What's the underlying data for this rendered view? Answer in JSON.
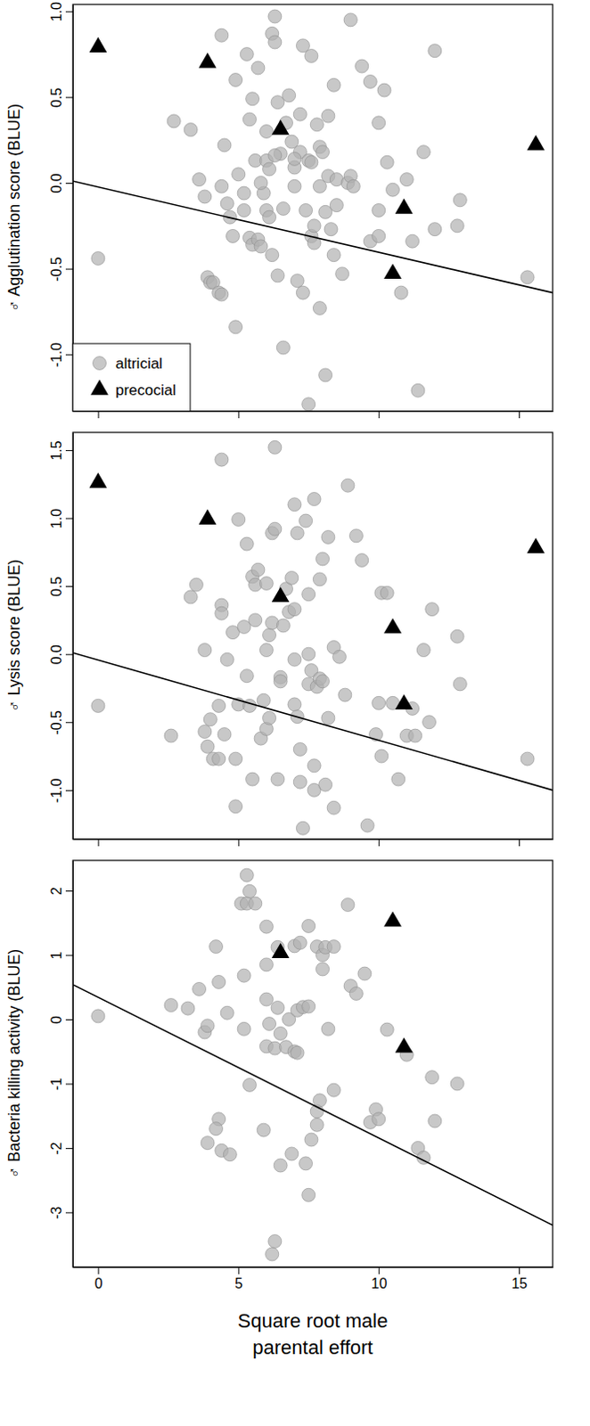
{
  "chart_data": [
    {
      "type": "scatter",
      "y_label": "♂ Agglutination score (BLUE)",
      "xlim": [
        -0.9,
        16.2
      ],
      "xticks": [
        0,
        5,
        10,
        15
      ],
      "ylim": [
        -1.33,
        1.04
      ],
      "yticks": [
        {
          "value": 1,
          "label": "1.0"
        },
        0.5,
        {
          "value": 0,
          "label": "0.0"
        },
        -0.5,
        {
          "value": -1,
          "label": "-1.0"
        }
      ],
      "tick_labels": "y",
      "legend": "bottom left",
      "series": [
        {
          "name": "altricial",
          "color": "#b0b0b0",
          "marker": "circle",
          "x": [
            0,
            2.7,
            3.3,
            3.6,
            3.8,
            3.9,
            4.0,
            4.1,
            4.3,
            4.4,
            4.4,
            4.5,
            4.4,
            4.6,
            4.7,
            4.8,
            4.9,
            4.9,
            5.0,
            5.2,
            5.2,
            5.3,
            5.4,
            5.4,
            5.5,
            5.5,
            5.6,
            5.7,
            5.7,
            5.8,
            5.9,
            6.0,
            6.0,
            6.0,
            6.1,
            6.1,
            6.2,
            6.2,
            6.3,
            6.3,
            6.4,
            6.4,
            6.5,
            6.6,
            6.6,
            6.7,
            6.8,
            6.9,
            7.0,
            7.0,
            7.1,
            7.2,
            7.2,
            7.3,
            7.3,
            7.4,
            7.5,
            7.5,
            7.6,
            7.6,
            7.7,
            7.7,
            7.8,
            7.9,
            7.9,
            7.9,
            8.0,
            8.1,
            8.1,
            8.2,
            8.2,
            8.3,
            8.4,
            8.4,
            8.5,
            8.5,
            8.7,
            8.9,
            9.0,
            9.0,
            9.1,
            9.4,
            9.7,
            9.7,
            10.0,
            10.0,
            10.0,
            10.2,
            10.3,
            10.5,
            10.8,
            11.0,
            11.2,
            11.4,
            11.6,
            12.0,
            12.0,
            12.8,
            12.9,
            15.3,
            6.3,
            5.8,
            7.0,
            7.6
          ],
          "values": [
            -0.44,
            0.36,
            0.31,
            0.02,
            -0.08,
            -0.55,
            -0.58,
            -0.58,
            -0.64,
            -0.65,
            0.86,
            0.22,
            -0.02,
            -0.12,
            -0.2,
            -0.31,
            -0.84,
            0.6,
            0.05,
            -0.16,
            -0.06,
            0.75,
            -0.32,
            0.37,
            0.49,
            -0.36,
            0.13,
            0.67,
            -0.33,
            -0.37,
            -0.06,
            0.13,
            0.3,
            -0.16,
            -0.2,
            0.08,
            -0.42,
            0.87,
            0.97,
            0.82,
            -0.54,
            0.47,
            0.17,
            -0.96,
            -0.15,
            0.35,
            0.51,
            0.24,
            -0.02,
            0.09,
            -0.57,
            0.18,
            0.4,
            -0.64,
            0.8,
            -0.16,
            -1.29,
            0.13,
            -0.31,
            0.74,
            -0.25,
            -0.35,
            0.34,
            -0.02,
            -0.73,
            0.21,
            0.18,
            -1.12,
            -0.17,
            0.04,
            0.39,
            -0.27,
            -0.42,
            0.57,
            -0.13,
            0.02,
            -0.53,
            0,
            0.95,
            0.04,
            -0.02,
            0.68,
            0.59,
            -0.34,
            -0.31,
            -0.16,
            0.35,
            0.54,
            0.12,
            -0.04,
            -0.64,
            0.02,
            -0.34,
            -1.21,
            0.18,
            0.77,
            -0.27,
            -0.25,
            -0.1,
            -0.55,
            0.16,
            0,
            0.14,
            0.12
          ]
        },
        {
          "name": "precocial",
          "color": "#000000",
          "marker": "triangle",
          "x": [
            0,
            3.9,
            6.5,
            10.9,
            10.5,
            15.6
          ],
          "values": [
            0.79,
            0.7,
            0.31,
            -0.15,
            -0.53,
            0.22
          ]
        }
      ],
      "fit": {
        "x": [
          -0.9,
          16.2
        ],
        "values": [
          0.01,
          -0.64
        ],
        "line_style": "solid"
      }
    },
    {
      "type": "scatter",
      "y_label": "♂ Lysis score (BLUE)",
      "xlim": [
        -0.9,
        16.2
      ],
      "xticks": [
        0,
        5,
        10,
        15
      ],
      "ylim": [
        -1.36,
        1.63
      ],
      "yticks": [
        1.5,
        {
          "value": 1,
          "label": "1.0"
        },
        0.5,
        {
          "value": 0,
          "label": "0.0"
        },
        -0.5,
        {
          "value": -1,
          "label": "-1.0"
        }
      ],
      "tick_labels": "y",
      "series": [
        {
          "name": "altricial",
          "color": "#b0b0b0",
          "marker": "circle",
          "x": [
            0,
            2.6,
            3.3,
            3.5,
            3.8,
            3.8,
            3.9,
            4.0,
            4.1,
            4.3,
            4.3,
            4.4,
            4.4,
            4.4,
            4.5,
            4.6,
            4.8,
            4.9,
            4.9,
            5.0,
            5.0,
            5.2,
            5.3,
            5.3,
            5.4,
            5.5,
            5.5,
            5.6,
            5.6,
            5.7,
            5.8,
            5.9,
            6.0,
            6.0,
            6.0,
            6.1,
            6.1,
            6.2,
            6.2,
            6.3,
            6.3,
            6.4,
            6.5,
            6.5,
            6.6,
            6.7,
            6.8,
            6.9,
            7.0,
            7.0,
            7.0,
            7.0,
            7.1,
            7.1,
            7.2,
            7.2,
            7.3,
            7.4,
            7.5,
            7.5,
            7.5,
            7.6,
            7.7,
            7.7,
            7.7,
            7.8,
            7.9,
            7.9,
            8.0,
            8.0,
            8.1,
            8.2,
            8.2,
            8.4,
            8.4,
            8.6,
            8.8,
            8.9,
            9.2,
            9.4,
            9.6,
            9.9,
            10.0,
            10.1,
            10.1,
            10.3,
            10.5,
            10.7,
            11.0,
            11.2,
            11.3,
            11.6,
            11.8,
            11.9,
            12.8,
            12.9,
            15.3
          ],
          "values": [
            -0.38,
            -0.6,
            0.42,
            0.51,
            0.03,
            -0.57,
            -0.68,
            -0.48,
            -0.77,
            -0.77,
            -0.38,
            1.43,
            0.36,
            0.3,
            -0.59,
            -0.04,
            0.16,
            -0.77,
            -1.12,
            0.99,
            -0.37,
            0.2,
            0.81,
            -0.16,
            -0.38,
            0.57,
            -0.92,
            0.51,
            0.25,
            0.62,
            -0.62,
            -0.34,
            0.52,
            0.03,
            -0.55,
            0.14,
            -0.47,
            0.23,
            0.89,
            0.92,
            1.52,
            -0.92,
            -0.17,
            -0.2,
            0.21,
            0.48,
            0.31,
            0.56,
            0.33,
            1.1,
            -0.04,
            -0.37,
            -0.46,
            0.89,
            -0.7,
            -0.94,
            -1.28,
            0.98,
            0,
            -0.22,
            0.44,
            -0.12,
            -0.82,
            1.14,
            -1.0,
            -0.24,
            0.55,
            -0.18,
            -0.2,
            0.7,
            -0.96,
            0.86,
            -0.47,
            -1.13,
            0.05,
            -0.02,
            -0.3,
            1.24,
            0.87,
            0.69,
            -1.26,
            -0.59,
            -0.36,
            -0.75,
            0.45,
            0.45,
            -0.36,
            -0.92,
            -0.6,
            -0.4,
            -0.6,
            0.03,
            -0.5,
            0.33,
            0.13,
            -0.22,
            -0.77
          ]
        },
        {
          "name": "precocial",
          "color": "#000000",
          "marker": "triangle",
          "x": [
            0,
            3.9,
            6.5,
            10.5,
            10.9,
            15.6
          ],
          "values": [
            1.26,
            0.99,
            0.42,
            0.19,
            -0.37,
            0.78
          ]
        }
      ],
      "fit": {
        "x": [
          -0.9,
          16.2
        ],
        "values": [
          0.01,
          -1.0
        ],
        "line_style": "solid"
      }
    },
    {
      "type": "scatter",
      "y_label": "♂ Bacteria killing activity (BLUE)",
      "x_label": "Square root male parental effort",
      "xlim": [
        -0.9,
        16.2
      ],
      "xticks": [
        0,
        5,
        10,
        15
      ],
      "ylim": [
        -3.85,
        2.47
      ],
      "yticks": [
        2,
        1,
        0,
        -1,
        -2,
        -3
      ],
      "series": [
        {
          "name": "altricial",
          "color": "#b0b0b0",
          "marker": "circle",
          "x": [
            0,
            2.6,
            3.2,
            3.6,
            3.8,
            3.9,
            3.9,
            4.2,
            4.3,
            4.3,
            4.4,
            4.6,
            4.7,
            4.2,
            5.1,
            5.2,
            5.2,
            5.3,
            5.3,
            5.4,
            5.4,
            5.6,
            5.9,
            6.0,
            6.0,
            6.0,
            6.0,
            6.1,
            6.2,
            6.3,
            6.3,
            6.4,
            6.4,
            6.5,
            6.5,
            6.7,
            6.8,
            6.9,
            7.0,
            7.0,
            7.1,
            7.1,
            7.2,
            7.3,
            7.4,
            7.5,
            7.5,
            7.5,
            7.6,
            7.8,
            7.8,
            7.8,
            7.9,
            8.0,
            8.0,
            8.1,
            8.2,
            8.4,
            8.4,
            8.9,
            9.0,
            9.2,
            9.5,
            9.7,
            9.9,
            10.0,
            10.3,
            11.0,
            11.4,
            11.6,
            11.9,
            12.0,
            12.8
          ],
          "values": [
            0.05,
            0.22,
            0.17,
            0.47,
            -0.2,
            -0.1,
            -1.92,
            1.13,
            0.58,
            -1.55,
            -2.04,
            0.1,
            -2.1,
            -1.7,
            1.8,
            -0.15,
            0.68,
            2.24,
            1.8,
            1.99,
            -1.02,
            1.8,
            -1.72,
            1.44,
            0.31,
            0.85,
            -0.42,
            -0.07,
            -3.65,
            -3.45,
            -0.45,
            0.18,
            1.12,
            -2.27,
            -0.22,
            -0.43,
            0,
            -2.09,
            1.14,
            -0.5,
            0.14,
            -0.52,
            1.19,
            0.19,
            -2.24,
            1.45,
            0.2,
            -2.73,
            -1.87,
            1.13,
            -1.64,
            -1.43,
            -1.26,
            1.0,
            0.78,
            1.12,
            -0.15,
            1.13,
            -1.1,
            1.78,
            0.52,
            0.4,
            0.71,
            -1.6,
            -1.4,
            -1.55,
            -0.16,
            -0.55,
            -2.0,
            -2.15,
            -0.9,
            -1.58,
            -1.0
          ]
        },
        {
          "name": "precocial",
          "color": "#000000",
          "marker": "triangle",
          "x": [
            6.5,
            10.5,
            10.9
          ],
          "values": [
            1.03,
            1.52,
            -0.44
          ]
        }
      ],
      "fit": {
        "x": [
          -0.9,
          16.2
        ],
        "values": [
          0.54,
          -3.2
        ],
        "line_style": "solid"
      }
    }
  ]
}
